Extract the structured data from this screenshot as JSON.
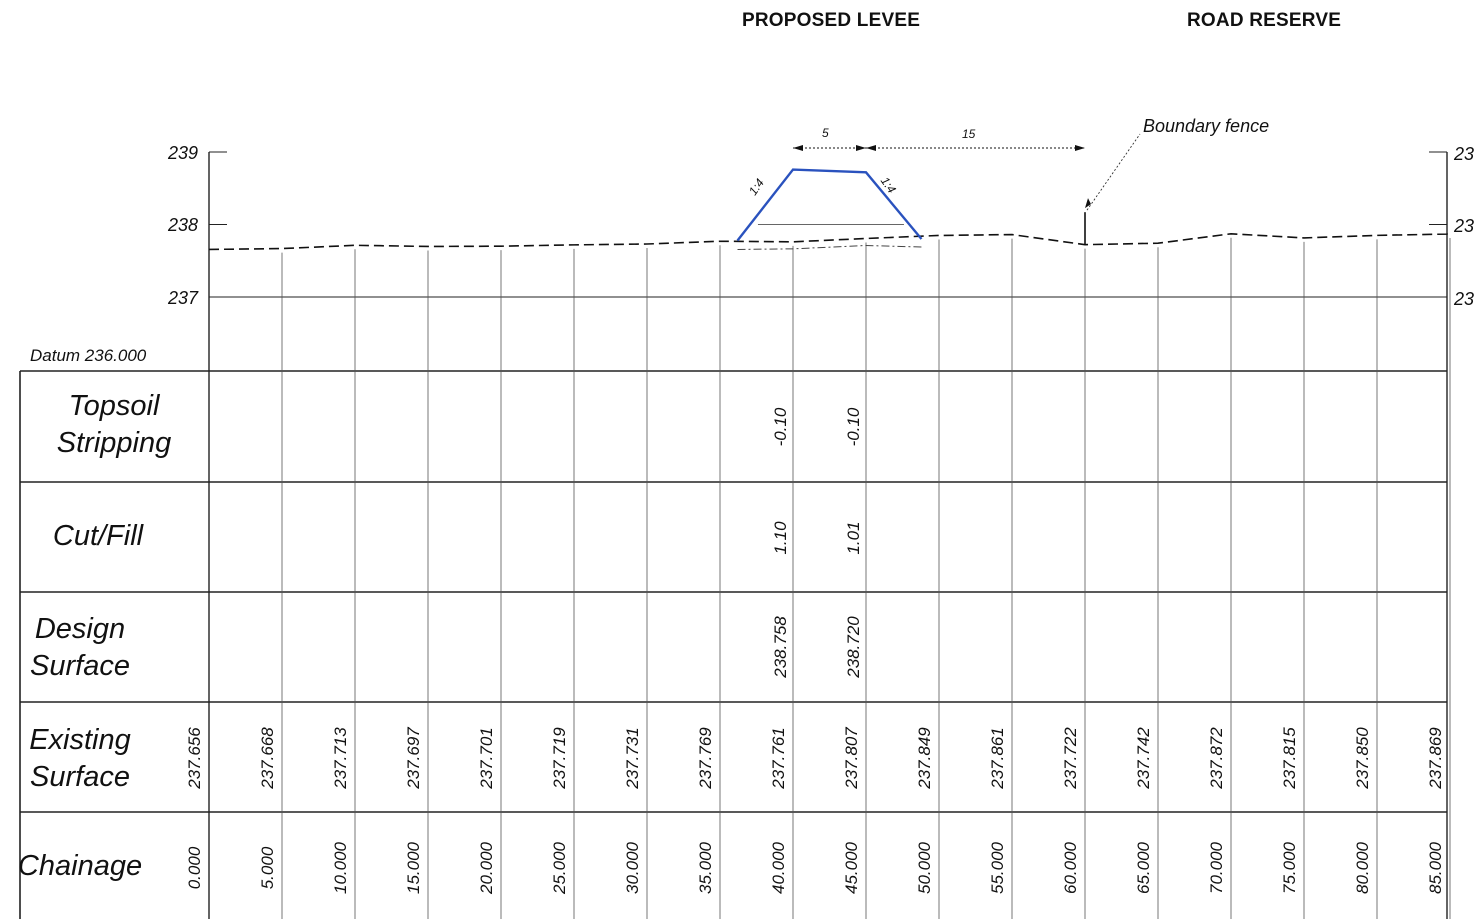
{
  "headings": {
    "proposed_levee": "PROPOSED LEVEE",
    "road_reserve": "ROAD RESERVE"
  },
  "axis": {
    "left_ticks": [
      "239",
      "238",
      "237"
    ],
    "right_ticks": [
      "23",
      "23",
      "23"
    ],
    "datum": "Datum 236.000"
  },
  "annotations": {
    "boundary_fence": "Boundary fence",
    "crest_width": "5",
    "offset_dim": "15",
    "slope_left": "1:4",
    "slope_right": "1:4"
  },
  "rows": {
    "topsoil": [
      "Topsoil",
      "Stripping"
    ],
    "cutfill": [
      "Cut/Fill"
    ],
    "design": [
      "Design",
      "Surface"
    ],
    "existing": [
      "Existing",
      "Surface"
    ],
    "chainage": [
      "Chainage"
    ]
  },
  "table": {
    "topsoil_stripping": [
      {
        "chainage": "40.000",
        "value": "-0.10"
      },
      {
        "chainage": "45.000",
        "value": "-0.10"
      }
    ],
    "cut_fill": [
      {
        "chainage": "40.000",
        "value": "1.10"
      },
      {
        "chainage": "45.000",
        "value": "1.01"
      }
    ],
    "design_surface": [
      {
        "chainage": "40.000",
        "value": "238.758"
      },
      {
        "chainage": "45.000",
        "value": "238.720"
      }
    ],
    "existing_surface": [
      "237.656",
      "237.668",
      "237.713",
      "237.697",
      "237.701",
      "237.719",
      "237.731",
      "237.769",
      "237.761",
      "237.807",
      "237.849",
      "237.861",
      "237.722",
      "237.742",
      "237.872",
      "237.815",
      "237.850",
      "237.869"
    ],
    "chainage": [
      "0.000",
      "5.000",
      "10.000",
      "15.000",
      "20.000",
      "25.000",
      "30.000",
      "35.000",
      "40.000",
      "45.000",
      "50.000",
      "55.000",
      "60.000",
      "65.000",
      "70.000",
      "75.000",
      "80.000",
      "85.000"
    ]
  },
  "profile": {
    "existing_ground": [
      {
        "ch": 0,
        "rl": 237.656
      },
      {
        "ch": 5,
        "rl": 237.668
      },
      {
        "ch": 10,
        "rl": 237.713
      },
      {
        "ch": 15,
        "rl": 237.697
      },
      {
        "ch": 20,
        "rl": 237.701
      },
      {
        "ch": 25,
        "rl": 237.719
      },
      {
        "ch": 30,
        "rl": 237.731
      },
      {
        "ch": 35,
        "rl": 237.769
      },
      {
        "ch": 40,
        "rl": 237.761
      },
      {
        "ch": 45,
        "rl": 237.807
      },
      {
        "ch": 50,
        "rl": 237.849
      },
      {
        "ch": 55,
        "rl": 237.861
      },
      {
        "ch": 60,
        "rl": 237.722
      },
      {
        "ch": 65,
        "rl": 237.742
      },
      {
        "ch": 70,
        "rl": 237.872
      },
      {
        "ch": 75,
        "rl": 237.815
      },
      {
        "ch": 80,
        "rl": 237.85
      },
      {
        "ch": 85,
        "rl": 237.869
      }
    ],
    "levee": [
      {
        "ch": 36.2,
        "rl": 237.78
      },
      {
        "ch": 40,
        "rl": 238.758
      },
      {
        "ch": 45,
        "rl": 238.72
      },
      {
        "ch": 48.8,
        "rl": 237.8
      }
    ],
    "fence_chainage": 60,
    "levee_color": "#2a52be"
  }
}
